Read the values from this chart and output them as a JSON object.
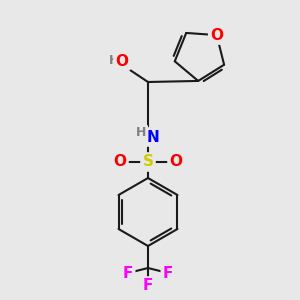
{
  "bg_color": "#e8e8e8",
  "bond_color": "#1a1a1a",
  "bond_width": 1.5,
  "atom_colors": {
    "O": "#ff0000",
    "N": "#0000ff",
    "S": "#cccc00",
    "F": "#ff00ff",
    "H": "#808080",
    "C": "#1a1a1a"
  },
  "font_size_atom": 11,
  "font_size_h": 9
}
